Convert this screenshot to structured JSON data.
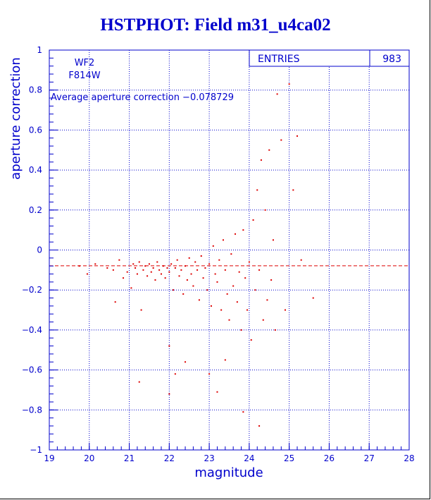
{
  "chart_data": {
    "type": "scatter",
    "title": "HSTPHOT: Field m31_u4ca02",
    "xlabel": "magnitude",
    "ylabel": "aperture correction",
    "xlim": [
      19,
      28
    ],
    "ylim": [
      -1,
      1
    ],
    "x_ticks": [
      "19",
      "20",
      "21",
      "22",
      "23",
      "24",
      "25",
      "26",
      "27",
      "28"
    ],
    "y_ticks": [
      "-1",
      "-0.8",
      "-0.6",
      "-0.4",
      "-0.2",
      "0",
      "0.2",
      "0.4",
      "0.6",
      "0.8",
      "1"
    ],
    "grid": true,
    "reference_line": {
      "y": -0.078729,
      "style": "dashed",
      "color": "#dd0000"
    },
    "stats_box": {
      "label": "ENTRIES",
      "value": "983"
    },
    "annotations": {
      "chip": "WF2",
      "filter": "F814W",
      "average": "Average aperture correction -0.078729"
    },
    "colors": {
      "axis": "#0000cc",
      "points": "#dd0000",
      "title": "#0000cc"
    },
    "series": [
      {
        "values_xy": [
          [
            19.75,
            -0.08
          ],
          [
            19.95,
            -0.12
          ],
          [
            20.15,
            -0.07
          ],
          [
            20.45,
            -0.09
          ],
          [
            20.6,
            -0.1
          ],
          [
            20.65,
            -0.26
          ],
          [
            20.75,
            -0.05
          ],
          [
            20.85,
            -0.14
          ],
          [
            20.95,
            -0.11
          ],
          [
            21.05,
            -0.19
          ],
          [
            21.1,
            -0.07
          ],
          [
            21.15,
            -0.09
          ],
          [
            21.2,
            -0.12
          ],
          [
            21.25,
            -0.06
          ],
          [
            21.3,
            -0.3
          ],
          [
            21.35,
            -0.1
          ],
          [
            21.4,
            -0.08
          ],
          [
            21.45,
            -0.13
          ],
          [
            21.5,
            -0.07
          ],
          [
            21.55,
            -0.11
          ],
          [
            21.6,
            -0.09
          ],
          [
            21.65,
            -0.15
          ],
          [
            21.7,
            -0.06
          ],
          [
            21.75,
            -0.1
          ],
          [
            21.8,
            -0.12
          ],
          [
            21.85,
            -0.08
          ],
          [
            21.9,
            -0.14
          ],
          [
            21.95,
            -0.09
          ],
          [
            22.0,
            -0.11
          ],
          [
            22.05,
            -0.07
          ],
          [
            22.1,
            -0.2
          ],
          [
            22.15,
            -0.09
          ],
          [
            22.2,
            -0.05
          ],
          [
            22.25,
            -0.13
          ],
          [
            22.3,
            -0.1
          ],
          [
            22.35,
            -0.22
          ],
          [
            22.4,
            -0.08
          ],
          [
            22.45,
            -0.15
          ],
          [
            22.5,
            -0.04
          ],
          [
            22.55,
            -0.12
          ],
          [
            22.6,
            -0.18
          ],
          [
            22.65,
            -0.06
          ],
          [
            22.7,
            -0.1
          ],
          [
            22.75,
            -0.25
          ],
          [
            22.8,
            -0.03
          ],
          [
            22.85,
            -0.14
          ],
          [
            22.9,
            -0.09
          ],
          [
            22.95,
            -0.2
          ],
          [
            23.0,
            -0.07
          ],
          [
            23.05,
            -0.28
          ],
          [
            23.1,
            0.02
          ],
          [
            23.15,
            -0.12
          ],
          [
            23.2,
            -0.16
          ],
          [
            23.25,
            -0.05
          ],
          [
            23.3,
            -0.3
          ],
          [
            23.35,
            0.05
          ],
          [
            23.4,
            -0.1
          ],
          [
            23.45,
            -0.22
          ],
          [
            23.5,
            -0.35
          ],
          [
            23.55,
            -0.02
          ],
          [
            23.6,
            -0.18
          ],
          [
            23.65,
            0.08
          ],
          [
            23.7,
            -0.26
          ],
          [
            23.75,
            -0.11
          ],
          [
            23.8,
            -0.4
          ],
          [
            23.85,
            0.1
          ],
          [
            23.9,
            -0.14
          ],
          [
            23.95,
            -0.3
          ],
          [
            24.0,
            -0.06
          ],
          [
            24.05,
            -0.45
          ],
          [
            24.1,
            0.15
          ],
          [
            24.15,
            -0.2
          ],
          [
            24.2,
            0.3
          ],
          [
            24.25,
            -0.1
          ],
          [
            24.3,
            0.45
          ],
          [
            24.35,
            -0.35
          ],
          [
            24.4,
            0.2
          ],
          [
            24.45,
            -0.25
          ],
          [
            24.5,
            0.5
          ],
          [
            24.55,
            -0.15
          ],
          [
            24.6,
            0.05
          ],
          [
            24.65,
            -0.4
          ],
          [
            24.7,
            0.78
          ],
          [
            24.8,
            0.55
          ],
          [
            24.9,
            -0.3
          ],
          [
            25.0,
            0.83
          ],
          [
            25.1,
            0.3
          ],
          [
            25.2,
            0.57
          ],
          [
            25.3,
            -0.05
          ],
          [
            25.6,
            -0.24
          ],
          [
            21.25,
            -0.66
          ],
          [
            22.0,
            -0.48
          ],
          [
            22.15,
            -0.62
          ],
          [
            22.0,
            -0.72
          ],
          [
            23.0,
            -0.62
          ],
          [
            23.2,
            -0.71
          ],
          [
            23.4,
            -0.55
          ],
          [
            23.85,
            -0.81
          ],
          [
            24.25,
            -0.88
          ],
          [
            22.4,
            -0.56
          ]
        ]
      }
    ]
  }
}
